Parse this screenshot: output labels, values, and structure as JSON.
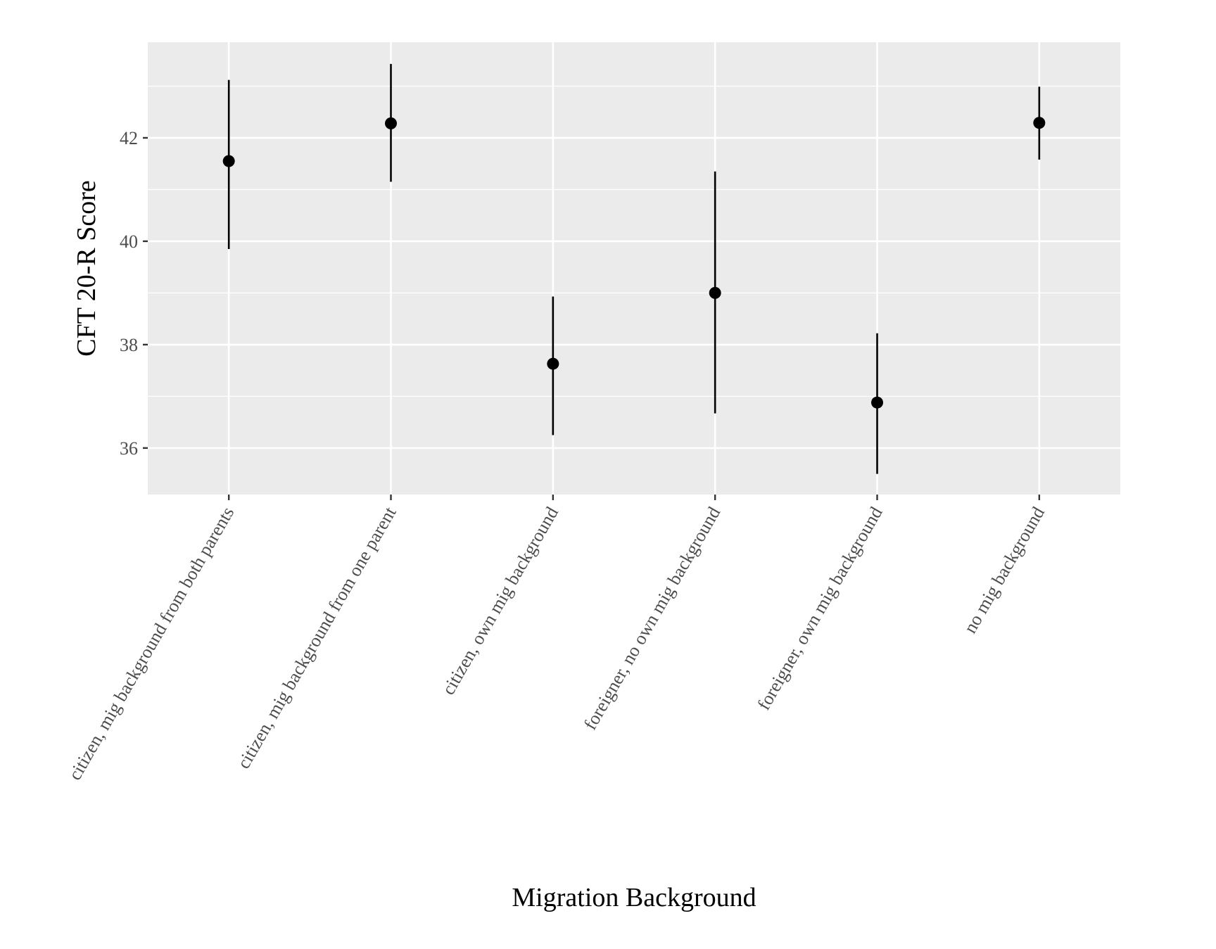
{
  "chart_data": {
    "type": "scatter",
    "subtype": "pointrange",
    "title": "",
    "xlabel": "Migration Background",
    "ylabel": "CFT 20-R Score",
    "categories": [
      "citizen, mig background from both parents",
      "citizen, mig background from one parent",
      "citizen, own mig background",
      "foreigner, no own mig background",
      "foreigner, own mig background",
      "no mig background"
    ],
    "series": [
      {
        "values": [
          41.55,
          42.28,
          37.63,
          39.0,
          36.88,
          42.29
        ],
        "lower": [
          39.85,
          41.15,
          36.25,
          36.67,
          35.5,
          41.58
        ],
        "upper": [
          43.12,
          43.43,
          38.93,
          41.35,
          38.22,
          42.99
        ]
      }
    ],
    "yticks": [
      36,
      38,
      40,
      42
    ],
    "ylim": [
      35.1,
      43.85
    ],
    "grid": true,
    "legend": "none",
    "colors": {
      "panel": "#ebebeb",
      "grid": "#ffffff",
      "marks": "#000000",
      "tick_text": "#4d4d4d",
      "tick_mark": "#333333"
    }
  }
}
